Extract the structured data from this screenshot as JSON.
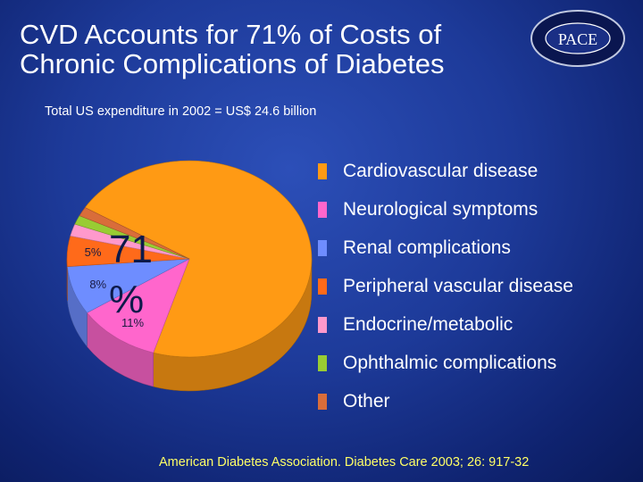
{
  "slide": {
    "title_line1": "CVD Accounts for 71% of Costs of",
    "title_line2": "Chronic Complications of Diabetes",
    "subtitle": "Total US expenditure in 2002 = US$ 24.6 billion",
    "source": "American Diabetes Association. Diabetes Care 2003; 26: 917-32",
    "logo": {
      "top_text": "PHYSICIANS' ACADEMY",
      "main_text": "PACE",
      "bottom_text": "CONTINUING EDUCATION"
    },
    "big_label_line1": "71",
    "big_label_line2": "%"
  },
  "colors": {
    "background": "#1d3a99",
    "title": "#ffffff",
    "source": "#ffff66"
  },
  "chart_data": {
    "type": "pie",
    "style": "3d",
    "categories": [
      "Cardiovascular disease",
      "Neurological symptoms",
      "Renal complications",
      "Peripheral vascular disease",
      "Endocrine/metabolic",
      "Ophthalmic complications",
      "Other"
    ],
    "values": [
      71,
      11,
      8,
      5,
      2,
      1.5,
      1.5
    ],
    "data_labels": [
      "",
      "11%",
      "8%",
      "5%",
      "",
      "",
      ""
    ],
    "colors": [
      "#ff9a14",
      "#ff66cc",
      "#6e8dff",
      "#ff6a1a",
      "#ff99cc",
      "#99cc33",
      "#d96d3a"
    ],
    "legend_position": "right"
  }
}
